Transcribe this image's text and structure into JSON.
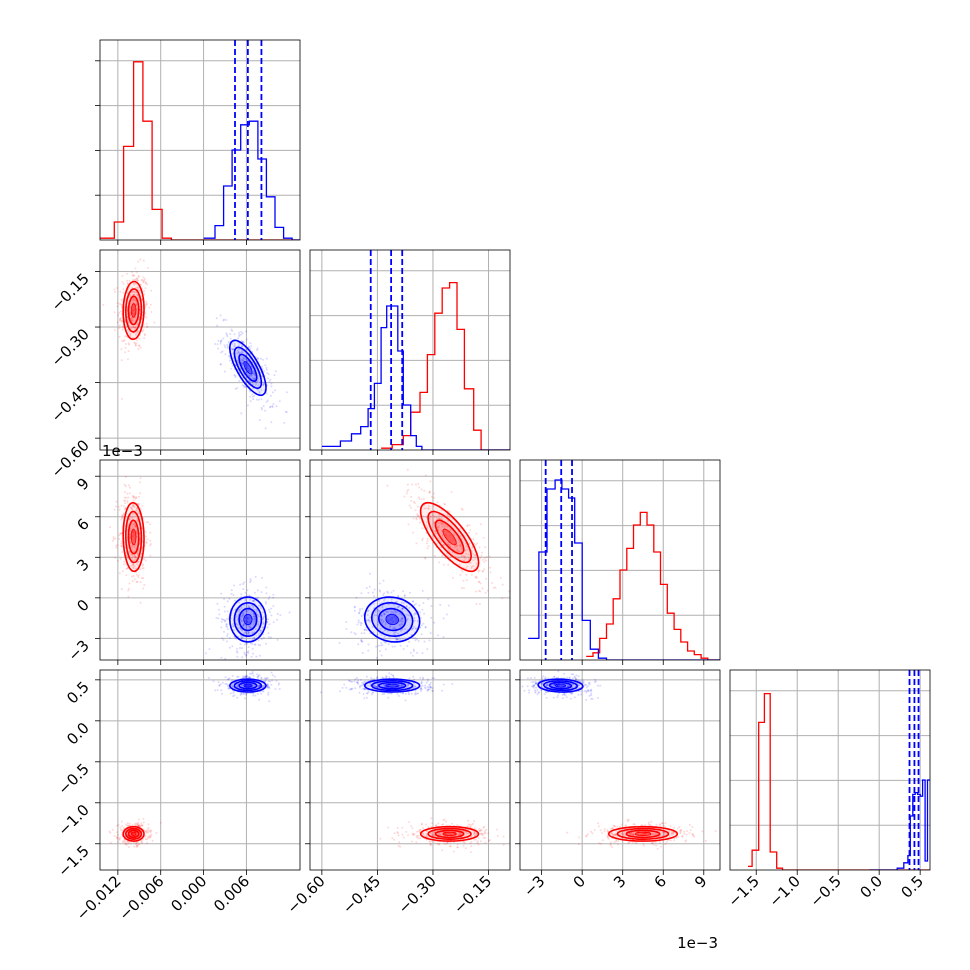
{
  "chart_data": {
    "type": "corner",
    "colors": {
      "red": "#ff0000",
      "blue": "#0000ff",
      "grid": "#b0b0b0"
    },
    "grid": true,
    "parameters": [
      {
        "index": 0,
        "lim": [
          -0.0145,
          0.0135
        ],
        "ticks": [
          -0.012,
          -0.006,
          0.0,
          0.006
        ],
        "tick_labels": [
          "−0.012",
          "−0.006",
          "0.000",
          "0.006"
        ]
      },
      {
        "index": 1,
        "lim": [
          -0.632,
          -0.092
        ],
        "ticks": [
          -0.6,
          -0.45,
          -0.3,
          -0.15
        ],
        "tick_labels": [
          "−0.60",
          "−0.45",
          "−0.30",
          "−0.15"
        ]
      },
      {
        "index": 2,
        "lim": [
          -4.6,
          10.2
        ],
        "ticks": [
          -3,
          0,
          3,
          6,
          9
        ],
        "tick_labels": [
          "−3",
          "0",
          "3",
          "6",
          "9"
        ],
        "offset_label": "1e−3"
      },
      {
        "index": 3,
        "lim": [
          -1.82,
          0.62
        ],
        "ticks": [
          -1.5,
          -1.0,
          -0.5,
          0.0,
          0.5
        ],
        "tick_labels": [
          "−1.5",
          "−1.0",
          "−0.5",
          "0.0",
          "0.5"
        ]
      }
    ],
    "series": [
      {
        "color_key": "red",
        "means": [
          -0.0098,
          -0.255,
          4.5,
          -1.38
        ],
        "stds": [
          0.00075,
          0.04,
          1.3,
          0.045
        ],
        "hist": [
          {
            "edges": [
              -0.0145,
              -0.0125,
              -0.0112,
              -0.0098,
              -0.0085,
              -0.0072,
              -0.0058,
              -0.0045,
              0.0135
            ],
            "heights": [
              0.01,
              0.1,
              0.52,
              0.99,
              0.66,
              0.17,
              0.01,
              0.0
            ]
          },
          {
            "edges": [
              -0.44,
              -0.41,
              -0.38,
              -0.36,
              -0.335,
              -0.315,
              -0.295,
              -0.275,
              -0.255,
              -0.235,
              -0.215,
              -0.19,
              -0.17,
              -0.092
            ],
            "heights": [
              0.01,
              0.03,
              0.08,
              0.21,
              0.32,
              0.53,
              0.76,
              0.9,
              0.93,
              0.67,
              0.34,
              0.11,
              0.0
            ]
          },
          {
            "edges": [
              0.3,
              0.8,
              1.3,
              1.8,
              2.3,
              2.8,
              3.3,
              3.8,
              4.3,
              4.8,
              5.3,
              5.8,
              6.3,
              6.8,
              7.3,
              7.8,
              8.3,
              8.8,
              9.3,
              10.2
            ],
            "heights": [
              0.02,
              0.04,
              0.12,
              0.2,
              0.34,
              0.5,
              0.62,
              0.75,
              0.82,
              0.75,
              0.6,
              0.42,
              0.26,
              0.17,
              0.1,
              0.05,
              0.03,
              0.01,
              0.0
            ]
          },
          {
            "edges": [
              -1.6,
              -1.55,
              -1.47,
              -1.4,
              -1.33,
              -1.25,
              -1.18,
              0.62
            ],
            "heights": [
              0.02,
              0.11,
              0.82,
              0.98,
              0.1,
              0.01,
              0.0
            ]
          }
        ]
      },
      {
        "color_key": "blue",
        "means": [
          0.0062,
          -0.41,
          -1.6,
          0.43
        ],
        "stds": [
          0.0013,
          0.038,
          0.85,
          0.04
        ],
        "quantiles": [
          [
            0.0044,
            0.0062,
            0.0081
          ],
          [
            -0.468,
            -0.413,
            -0.383
          ],
          [
            -2.7,
            -1.55,
            -0.75
          ],
          [
            0.37,
            0.43,
            0.48
          ]
        ],
        "hist": [
          {
            "edges": [
              0.0,
              0.0016,
              0.0028,
              0.004,
              0.0052,
              0.0064,
              0.0076,
              0.0088,
              0.01,
              0.0112,
              0.0124,
              0.0135
            ],
            "heights": [
              0.01,
              0.08,
              0.3,
              0.5,
              0.64,
              0.66,
              0.45,
              0.24,
              0.07,
              0.01,
              0.0
            ]
          },
          {
            "edges": [
              -0.6,
              -0.55,
              -0.52,
              -0.495,
              -0.475,
              -0.458,
              -0.44,
              -0.425,
              -0.41,
              -0.395,
              -0.38,
              -0.36,
              -0.345,
              -0.33,
              -0.31,
              -0.092
            ],
            "heights": [
              0.02,
              0.05,
              0.09,
              0.13,
              0.23,
              0.37,
              0.68,
              0.8,
              0.8,
              0.55,
              0.25,
              0.08,
              0.02,
              0.0,
              0.0
            ]
          },
          {
            "edges": [
              -4.0,
              -3.2,
              -2.6,
              -2.0,
              -1.5,
              -1.0,
              -0.55,
              0.0,
              0.6,
              1.2,
              1.8,
              10.2
            ],
            "heights": [
              0.12,
              0.6,
              0.95,
              1.0,
              0.95,
              0.9,
              0.65,
              0.22,
              0.06,
              0.01,
              0.0
            ]
          },
          {
            "edges": [
              -0.12,
              0.22,
              0.3,
              0.35,
              0.38,
              0.41,
              0.44,
              0.47,
              0.5,
              0.53,
              0.56,
              0.59,
              0.62
            ],
            "heights": [
              0.0,
              0.01,
              0.04,
              0.08,
              0.3,
              0.42,
              0.43,
              0.42,
              0.41,
              0.5,
              0.05,
              0.5
            ]
          }
        ]
      }
    ]
  }
}
